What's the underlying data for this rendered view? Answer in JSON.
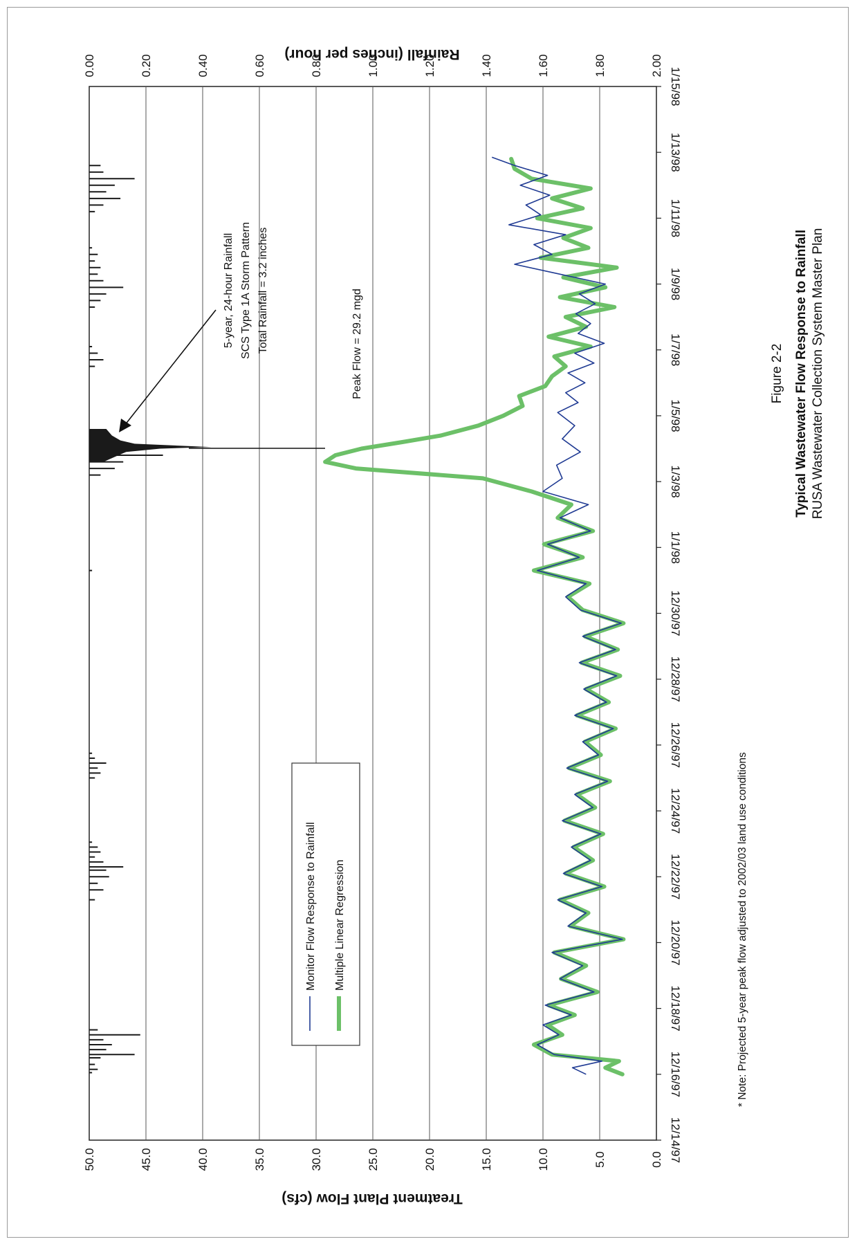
{
  "figure": {
    "label": "Figure 2-2",
    "title": "Typical Wastewater Flow Response to Rainfall",
    "subtitle": "RUSA Wastewater Collection System Master Plan",
    "note": "* Note: Projected 5-year peak flow adjusted to 2002/03 land use conditions"
  },
  "annotations": {
    "storm_line1": "5-year, 24-hour Rainfall",
    "storm_line2": "SCS Type 1A Storm Pattern",
    "storm_line3": "Total Rainfall = 3.2 inches",
    "peak_flow": "Peak Flow = 29.2 mgd"
  },
  "colors": {
    "monitor": "#1f3a93",
    "regression": "#6cc068",
    "rainfall": "#1a1a1a",
    "grid": "#555555"
  },
  "chart_data": {
    "type": "line",
    "orientation": "rotated-90-clockwise",
    "x_axis": {
      "label": "",
      "ticks": [
        "12/14/97",
        "12/16/97",
        "12/18/97",
        "12/20/97",
        "12/22/97",
        "12/24/97",
        "12/26/97",
        "12/28/97",
        "12/30/97",
        "1/1/98",
        "1/3/98",
        "1/5/98",
        "1/7/98",
        "1/9/98",
        "1/11/98",
        "1/13/98",
        "1/15/98"
      ],
      "range_days": [
        0,
        32
      ]
    },
    "y_left": {
      "label": "Treatment Plant Flow (cfs)",
      "range": [
        0,
        50
      ],
      "ticks": [
        "0.0",
        "5.0",
        "10.0",
        "15.0",
        "20.0",
        "25.0",
        "30.0",
        "35.0",
        "40.0",
        "45.0",
        "50.0"
      ]
    },
    "y_right": {
      "label": "Rainfall (inches per hour)",
      "range": [
        2.0,
        0.0
      ],
      "inverted": true,
      "ticks": [
        "0.00",
        "0.20",
        "0.40",
        "0.60",
        "0.80",
        "1.00",
        "1.20",
        "1.40",
        "1.60",
        "1.80",
        "2.00"
      ]
    },
    "grid": true,
    "legend": {
      "placement": "center",
      "entries": [
        "Monitor Flow Response to Rainfall",
        "Multiple Linear Regression"
      ]
    },
    "series": [
      {
        "name": "Monitor Flow Response to Rainfall",
        "x_days": [
          2.0,
          2.2,
          2.4,
          2.6,
          2.9,
          3.2,
          3.5,
          3.8,
          4.1,
          4.5,
          4.9,
          5.3,
          5.7,
          6.1,
          6.5,
          6.9,
          7.3,
          7.7,
          8.1,
          8.5,
          8.9,
          9.3,
          9.7,
          10.1,
          10.5,
          10.9,
          11.3,
          11.7,
          12.1,
          12.5,
          12.9,
          13.3,
          13.7,
          14.1,
          14.5,
          14.9,
          15.3,
          15.7,
          16.1,
          16.5,
          16.9,
          17.3,
          17.7,
          18.1,
          18.5,
          18.9,
          19.3,
          19.7,
          20.1,
          20.5,
          20.9,
          21.3,
          21.7,
          22.1,
          22.4,
          22.7,
          23.0,
          23.3,
          23.6,
          23.9,
          24.2,
          24.5,
          24.8,
          25.1,
          25.4,
          25.7,
          26.0,
          26.3,
          26.6,
          26.9,
          27.2,
          27.5,
          27.8,
          28.1,
          28.4,
          28.7,
          29.0,
          29.3,
          29.6,
          29.85
        ],
        "y_cfs": [
          6.2,
          7.4,
          4.8,
          9.0,
          10.5,
          8.6,
          10.0,
          7.5,
          9.8,
          5.5,
          8.5,
          6.5,
          9.2,
          3.0,
          7.8,
          6.2,
          8.7,
          4.8,
          8.2,
          5.8,
          7.5,
          4.9,
          8.3,
          5.6,
          7.2,
          4.3,
          7.9,
          5.1,
          6.5,
          3.8,
          7.2,
          4.4,
          6.4,
          3.5,
          6.8,
          3.6,
          6.5,
          3.1,
          6.7,
          8.0,
          6.2,
          10.5,
          6.8,
          9.6,
          5.8,
          8.5,
          6.0,
          10.0,
          8.3,
          8.8,
          6.7,
          8.3,
          7.2,
          8.7,
          6.9,
          8.0,
          6.3,
          7.8,
          5.5,
          7.2,
          4.6,
          6.9,
          5.8,
          7.1,
          5.4,
          6.8,
          4.5,
          8.5,
          12.5,
          9.2,
          10.8,
          8.0,
          13.0,
          10.2,
          11.5,
          9.4,
          12.0,
          9.6,
          12.5,
          14.5
        ]
      },
      {
        "name": "Multiple Linear Regression",
        "x_days": [
          2.0,
          2.2,
          2.4,
          2.6,
          2.9,
          3.2,
          3.5,
          3.8,
          4.1,
          4.5,
          4.9,
          5.3,
          5.7,
          6.1,
          6.5,
          6.9,
          7.3,
          7.7,
          8.1,
          8.5,
          8.9,
          9.3,
          9.7,
          10.1,
          10.5,
          10.9,
          11.3,
          11.7,
          12.1,
          12.5,
          12.9,
          13.3,
          13.7,
          14.1,
          14.5,
          14.9,
          15.3,
          15.7,
          16.1,
          16.5,
          16.9,
          17.3,
          17.7,
          18.1,
          18.5,
          18.9,
          19.3,
          19.7,
          20.1,
          20.4,
          20.6,
          20.8,
          21.0,
          21.2,
          21.4,
          21.7,
          22.0,
          22.3,
          22.6,
          22.9,
          23.2,
          23.5,
          23.8,
          24.1,
          24.4,
          24.7,
          25.0,
          25.3,
          25.6,
          25.9,
          26.2,
          26.5,
          26.8,
          27.1,
          27.4,
          27.7,
          28.0,
          28.3,
          28.6,
          28.9,
          29.2,
          29.5,
          29.8
        ],
        "y_cfs": [
          3.0,
          4.5,
          3.3,
          9.2,
          10.8,
          8.3,
          9.6,
          7.2,
          9.5,
          5.2,
          8.4,
          6.2,
          9.0,
          2.9,
          7.6,
          6.0,
          8.5,
          4.6,
          8.0,
          5.6,
          7.3,
          4.7,
          8.1,
          5.4,
          7.0,
          4.1,
          7.7,
          4.9,
          6.3,
          3.6,
          7.0,
          4.2,
          6.2,
          3.2,
          6.6,
          3.4,
          6.3,
          2.9,
          6.5,
          7.8,
          5.9,
          10.8,
          6.5,
          9.9,
          5.6,
          8.7,
          7.5,
          11.0,
          15.3,
          26.5,
          29.2,
          28.3,
          26.0,
          22.4,
          19.0,
          15.7,
          13.5,
          11.8,
          12.1,
          9.8,
          9.2,
          8.0,
          9.0,
          5.8,
          9.5,
          6.2,
          8.0,
          3.7,
          8.5,
          4.5,
          8.2,
          3.5,
          10.2,
          6.0,
          8.2,
          5.8,
          10.5,
          6.5,
          9.2,
          5.8,
          11.0,
          12.5,
          12.8
        ]
      },
      {
        "name": "",
        "kind": "rainfall-bars",
        "x_days": [
          2.05,
          2.15,
          2.3,
          2.5,
          2.6,
          2.75,
          2.9,
          3.05,
          3.2,
          3.35,
          7.3,
          7.6,
          7.8,
          8.0,
          8.2,
          8.3,
          8.45,
          8.6,
          8.75,
          8.9,
          9.05,
          11.0,
          11.15,
          11.3,
          11.45,
          11.6,
          11.75,
          17.3,
          20.2,
          20.4,
          20.6,
          20.8,
          21.0,
          21.2,
          21.4,
          23.5,
          23.7,
          23.9,
          24.1,
          25.3,
          25.5,
          25.7,
          25.9,
          26.1,
          26.3,
          26.5,
          26.7,
          26.9,
          27.1,
          28.2,
          28.4,
          28.6,
          28.8,
          29.0,
          29.2,
          29.4,
          29.6
        ],
        "rain_in_per_hr": [
          0.01,
          0.03,
          0.02,
          0.04,
          0.16,
          0.06,
          0.08,
          0.05,
          0.18,
          0.03,
          0.02,
          0.05,
          0.03,
          0.07,
          0.06,
          0.12,
          0.05,
          0.02,
          0.04,
          0.03,
          0.01,
          0.02,
          0.04,
          0.03,
          0.06,
          0.02,
          0.01,
          0.01,
          0.04,
          0.09,
          0.12,
          0.26,
          0.04,
          0.03,
          0.02,
          0.02,
          0.05,
          0.03,
          0.01,
          0.02,
          0.04,
          0.06,
          0.12,
          0.05,
          0.03,
          0.04,
          0.02,
          0.03,
          0.01,
          0.02,
          0.05,
          0.11,
          0.06,
          0.09,
          0.16,
          0.05,
          0.04
        ],
        "storm_hyetograph": {
          "x_days": [
            20.6,
            20.75,
            20.9,
            21.0,
            21.05,
            21.15,
            21.25,
            21.4,
            21.6
          ],
          "rain_in_per_hr": [
            0.05,
            0.09,
            0.13,
            0.25,
            0.43,
            0.16,
            0.11,
            0.08,
            0.06
          ]
        }
      }
    ]
  }
}
